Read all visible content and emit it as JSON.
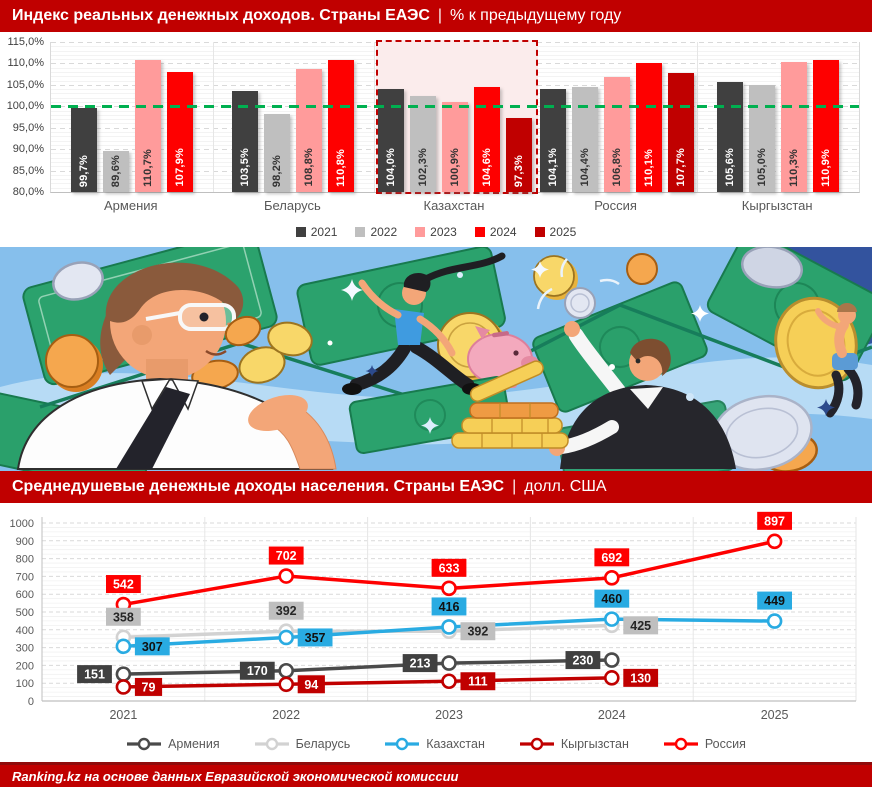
{
  "header_top": {
    "title": "Индекс реальных денежных доходов. Страны ЕАЭС",
    "separator": "|",
    "unit": "% к предыдущему году"
  },
  "header_bottom": {
    "title": "Среднедушевые денежные доходы населения. Страны ЕАЭС",
    "separator": "|",
    "unit": "долл. США"
  },
  "footer": {
    "text": "Ranking.kz на основе данных Евразийской экономической комиссии"
  },
  "accent_color": "#c00000",
  "chart_data": [
    {
      "type": "bar",
      "title": "Индекс реальных денежных доходов. Страны ЕАЭС, % к предыдущему году",
      "categories": [
        "Армения",
        "Беларусь",
        "Казахстан",
        "Россия",
        "Кыргызстан"
      ],
      "series": [
        {
          "name": "2021",
          "color": "#404040",
          "label_color": "#ffffff",
          "values": [
            99.7,
            103.5,
            104.0,
            104.1,
            105.6
          ]
        },
        {
          "name": "2022",
          "color": "#bfbfbf",
          "label_color": "#333333",
          "values": [
            89.6,
            98.2,
            102.3,
            104.4,
            105.0
          ]
        },
        {
          "name": "2023",
          "color": "#ff9b9b",
          "label_color": "#333333",
          "values": [
            110.7,
            108.8,
            100.9,
            106.8,
            110.3
          ]
        },
        {
          "name": "2024",
          "color": "#fe0000",
          "label_color": "#ffffff",
          "values": [
            107.9,
            110.8,
            104.6,
            110.1,
            110.9
          ]
        },
        {
          "name": "2025",
          "color": "#c00000",
          "label_color": "#ffffff",
          "values": [
            null,
            null,
            97.3,
            107.7,
            null
          ]
        }
      ],
      "ylim": [
        80,
        115
      ],
      "ytick_step": 5,
      "ytick_suffix": "%",
      "decimal_comma": true,
      "grid": true,
      "reference_line": {
        "value": 100,
        "color": "#00b050"
      },
      "highlight_category": "Казахстан",
      "legend_position": "bottom"
    },
    {
      "type": "line",
      "title": "Среднедушевые денежные доходы населения. Страны ЕАЭС, долл. США",
      "categories": [
        "2021",
        "2022",
        "2023",
        "2024",
        "2025"
      ],
      "series": [
        {
          "name": "Армения",
          "color": "#4a4a4a",
          "box_color": "#404040",
          "label_color": "#ffffff",
          "values": [
            151,
            170,
            213,
            230,
            null
          ],
          "label_pos": [
            "left",
            "left",
            "left",
            "left",
            null
          ]
        },
        {
          "name": "Беларусь",
          "color": "#d2d2d2",
          "box_color": "#bfbfbf",
          "label_color": "#262626",
          "values": [
            358,
            392,
            392,
            425,
            null
          ],
          "label_pos": [
            "above",
            "above",
            "right",
            "right",
            null
          ]
        },
        {
          "name": "Казахстан",
          "color": "#29abe2",
          "box_color": "#29abe2",
          "label_color": "#111111",
          "values": [
            307,
            357,
            416,
            460,
            449
          ],
          "label_pos": [
            "right",
            "right",
            "above",
            "above",
            "above"
          ]
        },
        {
          "name": "Кыргызстан",
          "color": "#c00000",
          "box_color": "#c00000",
          "label_color": "#ffffff",
          "values": [
            79,
            94,
            111,
            130,
            null
          ],
          "label_pos": [
            "right",
            "right",
            "right",
            "right",
            null
          ]
        },
        {
          "name": "Россия",
          "color": "#fe0000",
          "box_color": "#fe0000",
          "label_color": "#ffffff",
          "values": [
            542,
            702,
            633,
            692,
            897
          ],
          "label_pos": [
            "above",
            "above",
            "above",
            "above",
            "above"
          ]
        }
      ],
      "ylim": [
        0,
        1000
      ],
      "ytick_step": 100,
      "grid": true,
      "legend_position": "bottom"
    }
  ]
}
